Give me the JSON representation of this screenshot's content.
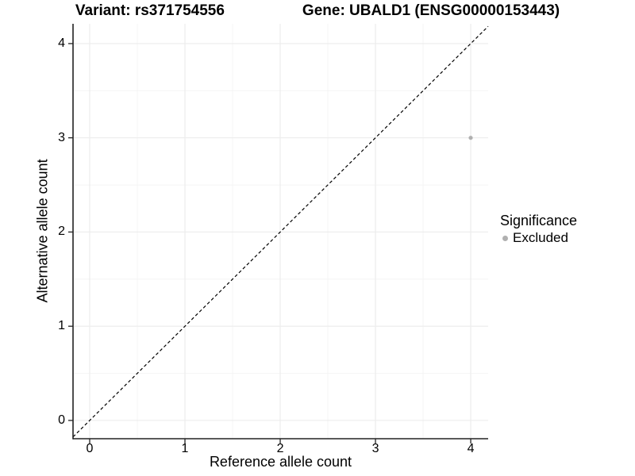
{
  "chart_data": {
    "type": "scatter",
    "title_variant": "Variant: rs371754556",
    "title_gene": "Gene: UBALD1 (ENSG00000153443)",
    "xlabel": "Reference allele count",
    "ylabel": "Alternative allele count",
    "x_ticks": [
      "0",
      "1",
      "2",
      "3",
      "4"
    ],
    "y_ticks": [
      "0",
      "1",
      "2",
      "3",
      "4"
    ],
    "xlim": [
      -0.175,
      4.183
    ],
    "ylim": [
      -0.194,
      4.21
    ],
    "grid": {
      "major": true,
      "minor": true
    },
    "reference_line": {
      "equation": "y = x",
      "style": "dashed",
      "color": "#000000"
    },
    "series": [
      {
        "name": "Excluded",
        "color": "#b0b0b0",
        "points": [
          {
            "x": 4,
            "y": 3
          }
        ]
      }
    ],
    "legend": {
      "title": "Significance",
      "position": "right",
      "items": [
        {
          "label": "Excluded",
          "color": "#b0b0b0"
        }
      ]
    },
    "colors": {
      "grid_major": "#ececec",
      "grid_minor": "#f4f4f4",
      "axis": "#222222",
      "text": "#000000"
    }
  }
}
